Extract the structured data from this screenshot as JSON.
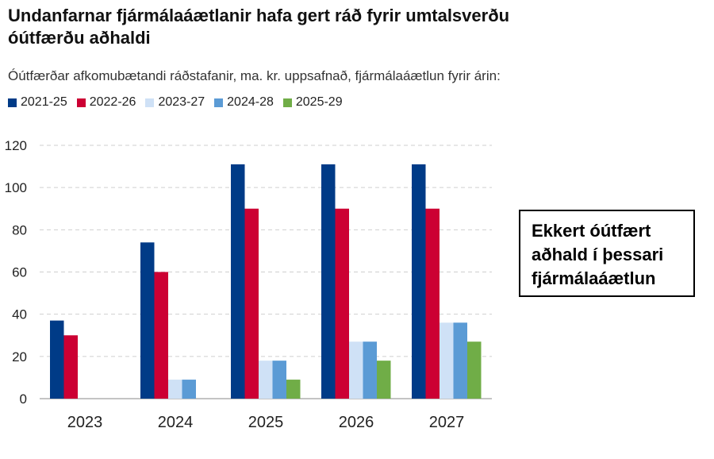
{
  "title": "Undanfarnar fjármálaáætlanir hafa gert ráð fyrir umtalsverðu óútfærðu aðhaldi",
  "subtitle": "Óútfærðar afkomubætandi ráðstafanir, ma. kr. uppsafnað, fjármálaáætlun fyrir árin:",
  "callout": "Ekkert óútfært aðhald í þessari fjármálaáætlun",
  "chart_data": {
    "type": "bar",
    "categories": [
      "2023",
      "2024",
      "2025",
      "2026",
      "2027"
    ],
    "ylim": [
      0,
      120
    ],
    "yticks": [
      "0",
      "20",
      "40",
      "60",
      "80",
      "100",
      "120"
    ],
    "grid": true,
    "legend_position": "top-left",
    "series": [
      {
        "name": "2021-25",
        "color": "#003b87",
        "values": [
          37,
          74,
          111,
          111,
          111
        ]
      },
      {
        "name": "2022-26",
        "color": "#cc0033",
        "values": [
          30,
          60,
          90,
          90,
          90
        ]
      },
      {
        "name": "2023-27",
        "color": "#cfe1f6",
        "values": [
          0,
          9,
          18,
          27,
          36
        ]
      },
      {
        "name": "2024-28",
        "color": "#5b9bd5",
        "values": [
          0,
          9,
          18,
          27,
          36
        ]
      },
      {
        "name": "2025-29",
        "color": "#70ad47",
        "values": [
          0,
          0,
          9,
          18,
          27
        ]
      }
    ]
  }
}
